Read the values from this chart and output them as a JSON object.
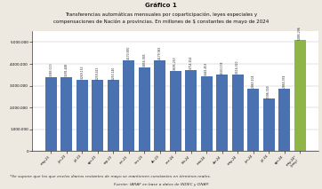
{
  "title1": "Gráfico 1",
  "title2": "Transferencias automáticas mensuales por coparticipación, leyes especiales y\ncompensaciones de Nación a provincias. En millones de $ constantes de mayo de 2024",
  "footnote1": "*Se supone que los que envíos diarios restantes de mayo se mantienen constantes en términos reales.",
  "footnote2": "Fuente: IARAF en base a datos de INDEC y DNAP.",
  "values": [
    3383000,
    3391448,
    3269153,
    3259413,
    3253140,
    4170830,
    3856905,
    4179943,
    3695253,
    3714254,
    3441453,
    3503178,
    3516320,
    2863104,
    2396300,
    2860374,
    5085296
  ],
  "labels": [
    "3.383.000",
    "3.391.448",
    "3.269.153",
    "3.259.413",
    "3.253.140",
    "4.170.830",
    "3.856.905",
    "4.179.943",
    "3.695.253",
    "3.714.254",
    "3.441.453",
    "3.503.178",
    "3.516.320",
    "2.863.104",
    "2.396.300",
    "2.860.374",
    "5.085.296"
  ],
  "x_labels": [
    "may-23",
    "jun-23",
    "jul-23",
    "ago-23",
    "sep-23",
    "oct-23",
    "nov-23",
    "dic-23",
    "ene-24",
    "feb-24",
    "mar-24",
    "abr-24",
    "may-24",
    "jun-24",
    "jul-24",
    "ago-24",
    "may-24*\n(proy.)"
  ],
  "bar_color_blue": "#4a72b0",
  "bar_color_green": "#8eb545",
  "ylim": [
    0,
    5500000
  ],
  "yticks": [
    0,
    1000000,
    2000000,
    3000000,
    4000000,
    5000000
  ],
  "background_color": "#ede8e0",
  "plot_bg": "#ffffff"
}
